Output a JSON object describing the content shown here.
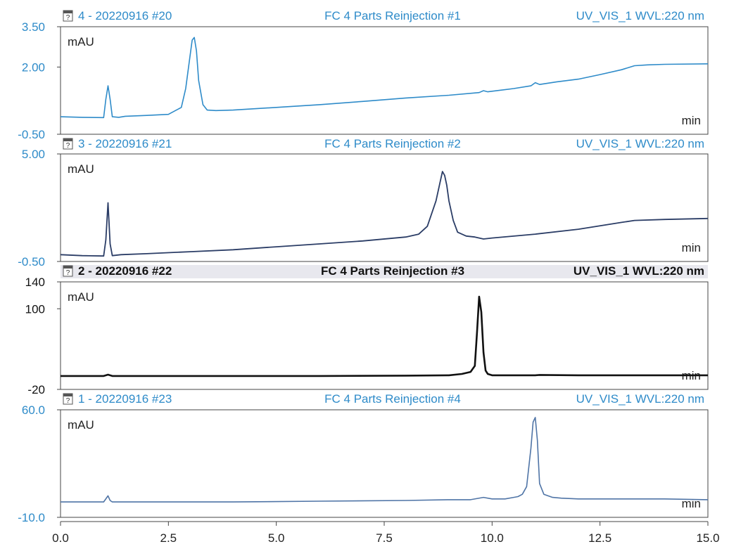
{
  "colors": {
    "panel_blue": "#2e8bc9",
    "panel_navy": "#2b3d66",
    "panel_black": "#111111",
    "panel_steel": "#4f74a6",
    "active_header_bg": "#e8e8ee",
    "frame": "#444444"
  },
  "icons": {
    "document": "document-icon"
  },
  "chart_data": [
    {
      "type": "line",
      "header": {
        "left": "4 - 20220916 #20",
        "center": "FC 4 Parts Reinjection #1",
        "right": "UV_VIS_1 WVL:220 nm"
      },
      "ylabel": "mAU",
      "xlabel": "min",
      "ylim": [
        -0.5,
        3.5
      ],
      "yticks": [
        "3.50",
        "2.00",
        "-0.50"
      ],
      "xlim": [
        0,
        15
      ],
      "color": "#2e8bc9",
      "stroke": 1.6,
      "active": false,
      "series": [
        {
          "x": [
            0,
            0.5,
            1.0,
            1.05,
            1.1,
            1.15,
            1.2,
            1.35,
            1.5,
            2.0,
            2.5,
            2.8,
            2.9,
            3.0,
            3.05,
            3.1,
            3.15,
            3.2,
            3.3,
            3.4,
            3.6,
            4,
            5,
            6,
            7,
            8,
            9,
            9.7,
            9.8,
            9.9,
            10,
            10.5,
            10.9,
            11.0,
            11.1,
            11.5,
            12,
            12.5,
            13,
            13.3,
            13.6,
            14,
            15
          ],
          "y": [
            0.15,
            0.13,
            0.12,
            0.8,
            1.3,
            0.8,
            0.15,
            0.13,
            0.17,
            0.2,
            0.24,
            0.5,
            1.2,
            2.4,
            3.0,
            3.1,
            2.6,
            1.5,
            0.6,
            0.4,
            0.38,
            0.4,
            0.5,
            0.6,
            0.72,
            0.85,
            0.95,
            1.05,
            1.12,
            1.08,
            1.1,
            1.2,
            1.3,
            1.42,
            1.35,
            1.45,
            1.55,
            1.72,
            1.9,
            2.05,
            2.08,
            2.1,
            2.12
          ]
        }
      ]
    },
    {
      "type": "line",
      "header": {
        "left": "3 - 20220916 #21",
        "center": "FC 4 Parts  Reinjection #2",
        "right": "UV_VIS_1 WVL:220 nm"
      },
      "ylabel": "mAU",
      "xlabel": "min",
      "ylim": [
        -0.5,
        5.0
      ],
      "yticks": [
        "5.00",
        "-0.50"
      ],
      "xlim": [
        0,
        15
      ],
      "color": "#2b3d66",
      "stroke": 1.8,
      "active": false,
      "series": [
        {
          "x": [
            0,
            0.5,
            1.0,
            1.05,
            1.1,
            1.15,
            1.2,
            1.4,
            2,
            3,
            4,
            5,
            6,
            7,
            8,
            8.3,
            8.5,
            8.7,
            8.8,
            8.85,
            8.9,
            8.95,
            9.0,
            9.1,
            9.2,
            9.4,
            9.6,
            9.8,
            10,
            11,
            12,
            13,
            13.3,
            14,
            15
          ],
          "y": [
            -0.15,
            -0.2,
            -0.22,
            0.6,
            2.5,
            0.4,
            -0.2,
            -0.15,
            -0.1,
            0.0,
            0.1,
            0.25,
            0.4,
            0.55,
            0.75,
            0.9,
            1.3,
            2.6,
            3.6,
            4.1,
            3.9,
            3.4,
            2.6,
            1.6,
            1.0,
            0.8,
            0.75,
            0.65,
            0.7,
            0.9,
            1.15,
            1.5,
            1.6,
            1.65,
            1.7
          ]
        }
      ]
    },
    {
      "type": "line",
      "header": {
        "left": "2 - 20220916 #22",
        "center": "FC 4 Parts  Reinjection #3",
        "right": "UV_VIS_1 WVL:220 nm"
      },
      "ylabel": "mAU",
      "xlabel": "min",
      "ylim": [
        -20,
        140
      ],
      "yticks": [
        "140",
        "100",
        "-20"
      ],
      "xlim": [
        0,
        15
      ],
      "color": "#111111",
      "stroke": 2.6,
      "active": true,
      "series": [
        {
          "x": [
            0,
            1.0,
            1.1,
            1.2,
            2,
            4,
            6,
            8,
            9.0,
            9.3,
            9.5,
            9.6,
            9.65,
            9.7,
            9.75,
            9.8,
            9.85,
            9.9,
            10.0,
            10.5,
            11,
            11.1,
            12,
            15
          ],
          "y": [
            0,
            0,
            2,
            0,
            0,
            0,
            0,
            0.5,
            1,
            3,
            6,
            15,
            65,
            118,
            95,
            35,
            8,
            3,
            1,
            1,
            1,
            1.5,
            1,
            1
          ]
        }
      ]
    },
    {
      "type": "line",
      "header": {
        "left": "1 - 20220916 #23",
        "center": "FC 4 Parts  Reinjection #4",
        "right": "UV_VIS_1 WVL:220 nm"
      },
      "ylabel": "mAU",
      "xlabel": "min",
      "ylim": [
        -10,
        60
      ],
      "yticks": [
        "60.0",
        "-10.0"
      ],
      "xlim": [
        0,
        15
      ],
      "color": "#4f74a6",
      "stroke": 1.6,
      "active": false,
      "series": [
        {
          "x": [
            0,
            1.0,
            1.1,
            1.15,
            1.2,
            2,
            4,
            6,
            8,
            9,
            9.5,
            9.8,
            10.0,
            10.3,
            10.5,
            10.6,
            10.7,
            10.8,
            10.9,
            10.95,
            11.0,
            11.05,
            11.1,
            11.2,
            11.4,
            11.6,
            12,
            13,
            14,
            15
          ],
          "y": [
            0,
            0,
            4,
            1,
            0,
            0,
            0,
            0.5,
            1,
            1.5,
            1.5,
            3,
            2,
            2,
            3,
            3.5,
            5,
            10,
            35,
            52,
            55,
            40,
            12,
            5,
            3,
            2.5,
            2,
            2,
            2,
            1.5
          ]
        }
      ]
    }
  ],
  "x_axis": {
    "ticks": [
      "0.0",
      "2.5",
      "5.0",
      "7.5",
      "10.0",
      "12.5",
      "15.0"
    ]
  }
}
